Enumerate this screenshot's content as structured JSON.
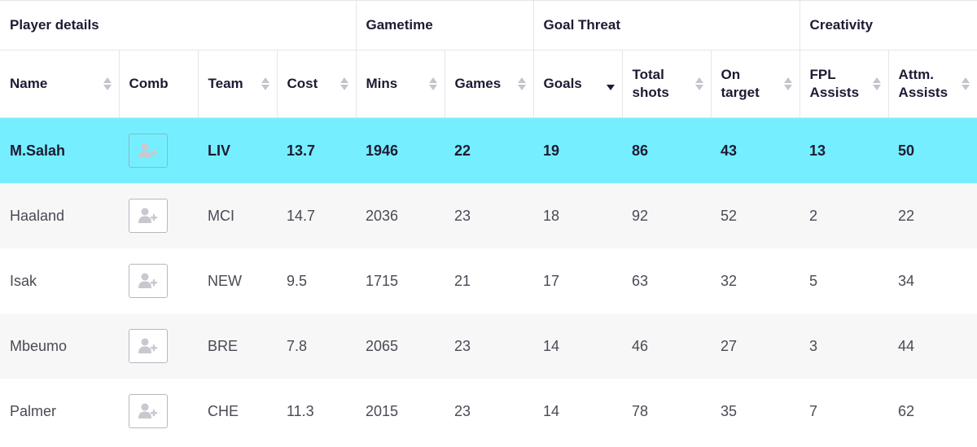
{
  "groups": {
    "player_details": "Player details",
    "gametime": "Gametime",
    "goal_threat": "Goal Threat",
    "creativity": "Creativity"
  },
  "columns": {
    "name": "Name",
    "comb": "Comb",
    "team": "Team",
    "cost": "Cost",
    "mins": "Mins",
    "games": "Games",
    "goals": "Goals",
    "total_shots_1": "Total",
    "total_shots_2": "shots",
    "on_target_1": "On",
    "on_target_2": "target",
    "fpl_assists_1": "FPL",
    "fpl_assists_2": "Assists",
    "attm_assists_1": "Attm.",
    "attm_assists_2": "Assists"
  },
  "rows": [
    {
      "name": "M.Salah",
      "team": "LIV",
      "cost": "13.7",
      "mins": "1946",
      "games": "22",
      "goals": "19",
      "shots": "86",
      "on_target": "43",
      "fpl_assists": "13",
      "attm_assists": "50"
    },
    {
      "name": "Haaland",
      "team": "MCI",
      "cost": "14.7",
      "mins": "2036",
      "games": "23",
      "goals": "18",
      "shots": "92",
      "on_target": "52",
      "fpl_assists": "2",
      "attm_assists": "22"
    },
    {
      "name": "Isak",
      "team": "NEW",
      "cost": "9.5",
      "mins": "1715",
      "games": "21",
      "goals": "17",
      "shots": "63",
      "on_target": "32",
      "fpl_assists": "5",
      "attm_assists": "34"
    },
    {
      "name": "Mbeumo",
      "team": "BRE",
      "cost": "7.8",
      "mins": "2065",
      "games": "23",
      "goals": "14",
      "shots": "46",
      "on_target": "27",
      "fpl_assists": "3",
      "attm_assists": "44"
    },
    {
      "name": "Palmer",
      "team": "CHE",
      "cost": "11.3",
      "mins": "2015",
      "games": "23",
      "goals": "14",
      "shots": "78",
      "on_target": "35",
      "fpl_assists": "7",
      "attm_assists": "62"
    }
  ],
  "icons": {
    "add_player": "add-user-icon",
    "sort": "sort-arrows-icon"
  },
  "colors": {
    "highlight_row": "#75efff",
    "alt_row": "#f7f7f8"
  }
}
